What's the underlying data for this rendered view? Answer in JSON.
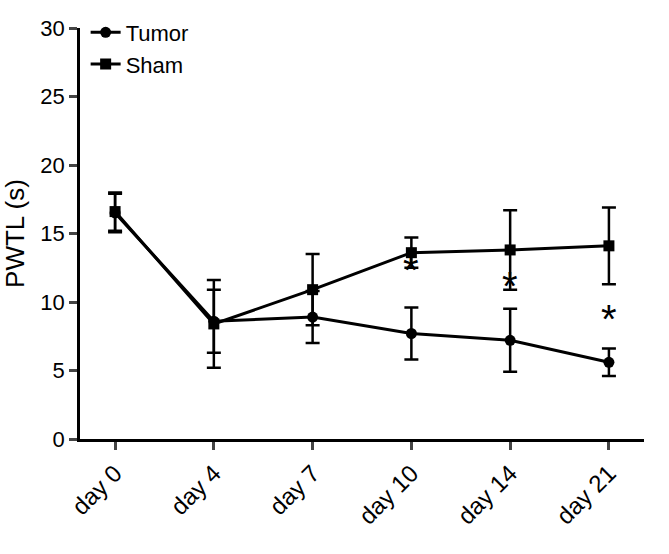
{
  "chart_data": {
    "type": "line",
    "y_label": "PWTL (s)",
    "categories": [
      "day 0",
      "day 4",
      "day 7",
      "day 10",
      "day 14",
      "day 21"
    ],
    "series": [
      {
        "name": "Tumor",
        "color": "#000000",
        "marker": "circle",
        "values": [
          16.5,
          8.6,
          8.9,
          7.7,
          7.2,
          5.6
        ],
        "error": [
          1.4,
          2.3,
          1.9,
          1.9,
          2.3,
          1.0
        ]
      },
      {
        "name": "Sham",
        "color": "#000000",
        "marker": "square",
        "values": [
          16.6,
          8.4,
          10.9,
          13.6,
          13.8,
          14.1
        ],
        "error": [
          1.4,
          3.2,
          2.6,
          1.1,
          2.9,
          2.8
        ]
      }
    ],
    "annotations": [
      {
        "x": "day 10",
        "y": 10.6,
        "text": "*"
      },
      {
        "x": "day 14",
        "y": 9.4,
        "text": "*"
      },
      {
        "x": "day 21",
        "y": 7.0,
        "text": "*"
      }
    ],
    "ylim": [
      0,
      30
    ],
    "yticks": [
      0,
      5,
      10,
      15,
      20,
      25,
      30
    ],
    "grid": false,
    "legend": "top-left"
  }
}
